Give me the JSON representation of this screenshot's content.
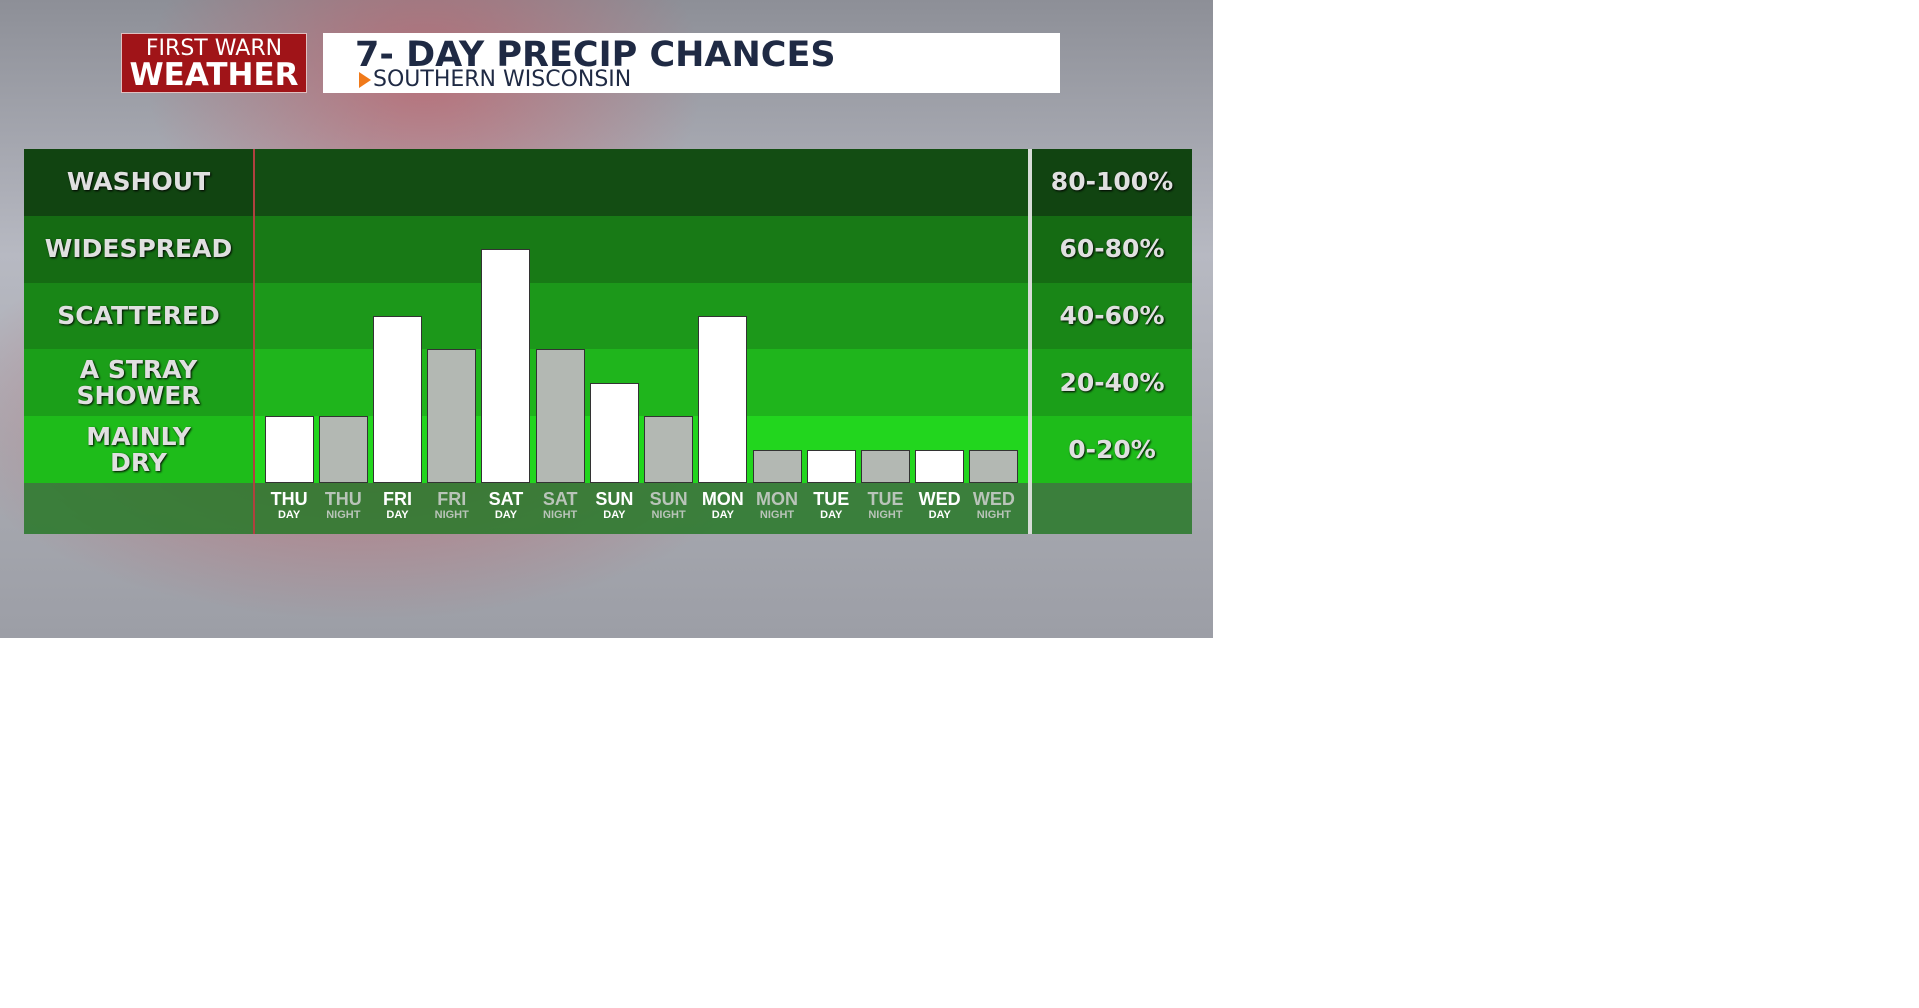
{
  "header": {
    "logo_top": "FIRST WARN",
    "logo_bottom": "WEATHER"
  },
  "chart_data": {
    "type": "bar",
    "title": "7- DAY PRECIP CHANCES",
    "subtitle": "SOUTHERN WISCONSIN",
    "categories": [
      [
        "THU",
        "DAY"
      ],
      [
        "THU",
        "NIGHT"
      ],
      [
        "FRI",
        "DAY"
      ],
      [
        "FRI",
        "NIGHT"
      ],
      [
        "SAT",
        "DAY"
      ],
      [
        "SAT",
        "NIGHT"
      ],
      [
        "SUN",
        "DAY"
      ],
      [
        "SUN",
        "NIGHT"
      ],
      [
        "MON",
        "DAY"
      ],
      [
        "MON",
        "NIGHT"
      ],
      [
        "TUE",
        "DAY"
      ],
      [
        "TUE",
        "NIGHT"
      ],
      [
        "WED",
        "DAY"
      ],
      [
        "WED",
        "NIGHT"
      ]
    ],
    "values": [
      20,
      20,
      50,
      40,
      70,
      40,
      30,
      20,
      50,
      10,
      10,
      10,
      10,
      10
    ],
    "colors": [
      "#ffffff",
      "#b3b8b3",
      "#ffffff",
      "#b3b8b3",
      "#ffffff",
      "#b3b8b3",
      "#ffffff",
      "#b3b8b3",
      "#ffffff",
      "#b3b8b3",
      "#ffffff",
      "#b3b8b3",
      "#ffffff",
      "#b3b8b3"
    ],
    "ylim": [
      0,
      100
    ],
    "bands": [
      {
        "name": "MAINLY DRY",
        "range": "0-20%",
        "min": 0,
        "max": 20,
        "color": "#22d61e"
      },
      {
        "name": "A STRAY SHOWER",
        "range": "20-40%",
        "min": 20,
        "max": 40,
        "color": "#1fb51c"
      },
      {
        "name": "SCATTERED",
        "range": "40-60%",
        "min": 40,
        "max": 60,
        "color": "#1c981a"
      },
      {
        "name": "WIDESPREAD",
        "range": "60-80%",
        "min": 60,
        "max": 80,
        "color": "#187a16"
      },
      {
        "name": "WASHOUT",
        "range": "80-100%",
        "min": 80,
        "max": 100,
        "color": "#134d13"
      }
    ]
  }
}
